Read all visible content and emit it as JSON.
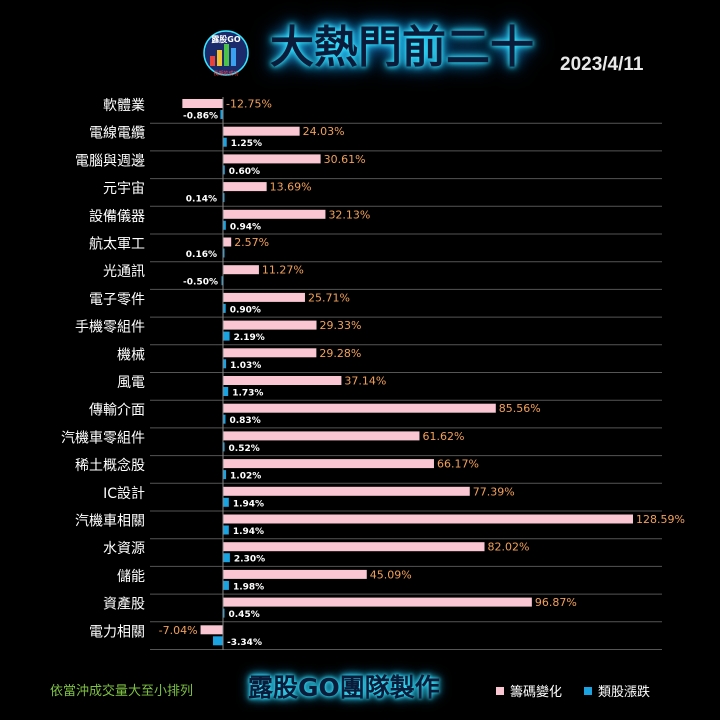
{
  "header": {
    "logo_text": "露股GO",
    "logo_subtext": "長期的成功",
    "title": "大熱門前二十",
    "date": "2023/4/11"
  },
  "footer": {
    "note": "依當沖成交量大至小排列",
    "credit": "露股GO團隊製作"
  },
  "colors": {
    "chip": "#f9c6d2",
    "sector": "#1aa3e0",
    "chip_label": "#f2a05a",
    "sector_label": "#ffffff",
    "category_label": "#ffffff",
    "gridline": "#555555"
  },
  "chart_data": {
    "type": "bar",
    "orientation": "horizontal",
    "categories": [
      "軟體業",
      "電線電纜",
      "電腦與週邊",
      "元宇宙",
      "設備儀器",
      "航太軍工",
      "光通訊",
      "電子零件",
      "手機零組件",
      "機械",
      "風電",
      "傳輸介面",
      "汽機車零組件",
      "稀土概念股",
      "IC設計",
      "汽機車相關",
      "水資源",
      "儲能",
      "資產股",
      "電力相關"
    ],
    "series": [
      {
        "name": "籌碼變化",
        "values": [
          -12.75,
          24.03,
          30.61,
          13.69,
          32.13,
          2.57,
          11.27,
          25.71,
          29.33,
          29.28,
          37.14,
          85.56,
          61.62,
          66.17,
          77.39,
          128.59,
          82.02,
          45.09,
          96.87,
          -7.04
        ],
        "labels": [
          "-12.75%",
          "24.03%",
          "30.61%",
          "13.69%",
          "32.13%",
          "2.57%",
          "11.27%",
          "25.71%",
          "29.33%",
          "29.28%",
          "37.14%",
          "85.56%",
          "61.62%",
          "66.17%",
          "77.39%",
          "128.59%",
          "82.02%",
          "45.09%",
          "96.87%",
          "-7.04%"
        ]
      },
      {
        "name": "類股漲跌",
        "values": [
          -0.86,
          1.25,
          0.6,
          0.14,
          0.94,
          0.16,
          -0.5,
          0.9,
          2.19,
          1.03,
          1.73,
          0.83,
          0.52,
          1.02,
          1.94,
          1.94,
          2.3,
          1.98,
          0.45,
          -3.34
        ],
        "labels": [
          "-0.86%",
          "1.25%",
          "0.60%",
          "0.14%",
          "0.94%",
          "0.16%",
          "-0.50%",
          "0.90%",
          "2.19%",
          "1.03%",
          "1.73%",
          "0.83%",
          "0.52%",
          "1.02%",
          "1.94%",
          "1.94%",
          "2.30%",
          "1.98%",
          "0.45%",
          "-3.34%"
        ]
      }
    ],
    "grid": true,
    "legend": "bottom-right"
  }
}
